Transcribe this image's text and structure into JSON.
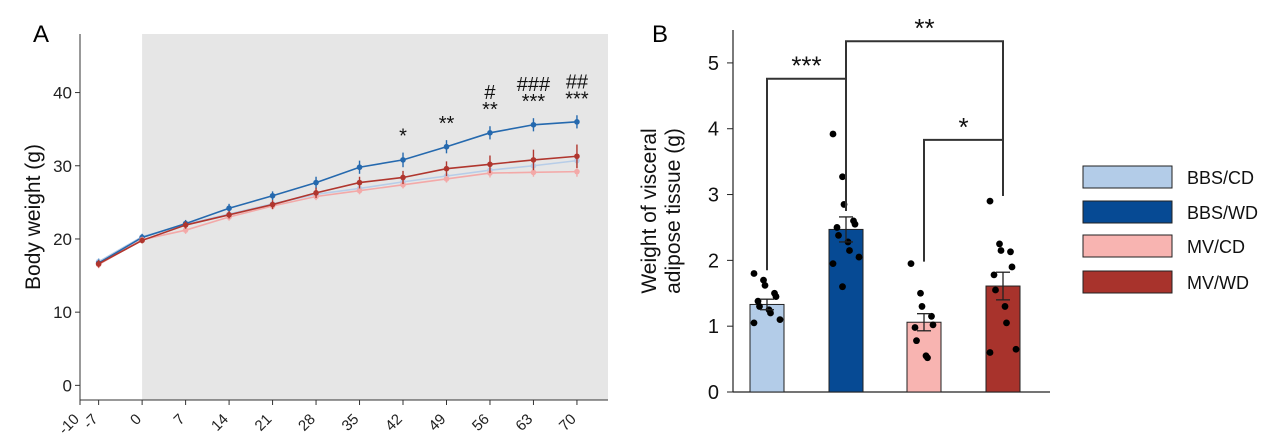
{
  "panels": {
    "a": {
      "label": "A"
    },
    "b": {
      "label": "B"
    }
  },
  "chart_data": [
    {
      "type": "line",
      "panel": "A",
      "title": "",
      "xlabel": "",
      "ylabel": "Body weight (g)",
      "x": [
        -7,
        0,
        7,
        14,
        21,
        28,
        35,
        42,
        49,
        56,
        63,
        70
      ],
      "x_tick_labels": [
        "-10",
        "-7",
        "0",
        "7",
        "14",
        "21",
        "28",
        "35",
        "42",
        "49",
        "56",
        "63",
        "70"
      ],
      "y_ticks": [
        0,
        10,
        20,
        30,
        40
      ],
      "xlim": [
        -10,
        75
      ],
      "ylim": [
        -2,
        48
      ],
      "shaded_region": [
        0,
        75
      ],
      "grid": false,
      "series": [
        {
          "name": "BBS/CD",
          "color": "#b7cde8",
          "values": [
            16.9,
            20.3,
            22.0,
            23.4,
            24.8,
            26.1,
            26.9,
            27.8,
            28.6,
            29.4,
            30.0,
            30.7
          ],
          "errors": [
            0.5,
            0.4,
            0.4,
            0.4,
            0.4,
            0.5,
            0.5,
            0.5,
            0.5,
            0.5,
            0.5,
            0.6
          ]
        },
        {
          "name": "BBS/WD",
          "color": "#2569ae",
          "values": [
            16.7,
            20.2,
            22.1,
            24.2,
            25.9,
            27.7,
            29.8,
            30.8,
            32.6,
            34.5,
            35.6,
            36.0
          ],
          "errors": [
            0.5,
            0.5,
            0.5,
            0.6,
            0.6,
            0.8,
            0.9,
            1.0,
            0.9,
            0.9,
            0.9,
            0.9
          ]
        },
        {
          "name": "MV/CD",
          "color": "#f3a9a8",
          "values": [
            16.5,
            19.9,
            21.2,
            23.0,
            24.5,
            25.8,
            26.6,
            27.4,
            28.2,
            29.0,
            29.1,
            29.2
          ],
          "errors": [
            0.5,
            0.4,
            0.5,
            0.5,
            0.5,
            0.5,
            0.5,
            0.5,
            0.5,
            0.6,
            0.6,
            0.7
          ]
        },
        {
          "name": "MV/WD",
          "color": "#b0362e",
          "values": [
            16.6,
            19.8,
            21.9,
            23.3,
            24.7,
            26.3,
            27.7,
            28.4,
            29.6,
            30.2,
            30.8,
            31.3
          ],
          "errors": [
            0.5,
            0.4,
            0.5,
            0.5,
            0.6,
            0.7,
            0.8,
            0.9,
            1.0,
            1.2,
            1.4,
            1.6
          ]
        }
      ],
      "annotations": [
        {
          "x": 42,
          "lines": [
            "*"
          ]
        },
        {
          "x": 49,
          "lines": [
            "**"
          ]
        },
        {
          "x": 56,
          "lines": [
            "#",
            "**"
          ]
        },
        {
          "x": 63,
          "lines": [
            "###",
            "***"
          ]
        },
        {
          "x": 70,
          "lines": [
            "##",
            "***"
          ]
        }
      ]
    },
    {
      "type": "bar",
      "panel": "B",
      "title": "",
      "xlabel": "",
      "ylabel_lines": [
        "Weight of visceral",
        "adipose tissue (g)"
      ],
      "categories": [
        "BBS/CD",
        "BBS/WD",
        "MV/CD",
        "MV/WD"
      ],
      "values": [
        1.33,
        2.47,
        1.06,
        1.61
      ],
      "errors": [
        0.08,
        0.19,
        0.13,
        0.21
      ],
      "colors": [
        "#b3cce8",
        "#064a94",
        "#f8b4b1",
        "#a8332c"
      ],
      "ylim": [
        0,
        5.5
      ],
      "y_ticks": [
        0,
        1,
        2,
        3,
        4,
        5
      ],
      "points": [
        [
          1.8,
          1.7,
          1.62,
          1.5,
          1.45,
          1.38,
          1.3,
          1.25,
          1.2,
          1.1,
          1.05
        ],
        [
          3.92,
          3.27,
          2.85,
          2.6,
          2.55,
          2.5,
          2.38,
          2.28,
          2.15,
          2.05,
          1.95,
          1.6
        ],
        [
          1.95,
          1.5,
          1.3,
          1.15,
          1.02,
          0.98,
          0.78,
          0.55,
          0.52
        ],
        [
          2.9,
          2.25,
          2.15,
          2.13,
          1.9,
          1.78,
          1.55,
          1.3,
          1.05,
          0.65,
          0.6
        ]
      ],
      "significance": [
        {
          "from": 0,
          "to": 1,
          "label": "***"
        },
        {
          "from": 1,
          "to": 3,
          "label": "**"
        },
        {
          "from": 2,
          "to": 3,
          "label": "*"
        }
      ],
      "legend_position": "right"
    }
  ]
}
